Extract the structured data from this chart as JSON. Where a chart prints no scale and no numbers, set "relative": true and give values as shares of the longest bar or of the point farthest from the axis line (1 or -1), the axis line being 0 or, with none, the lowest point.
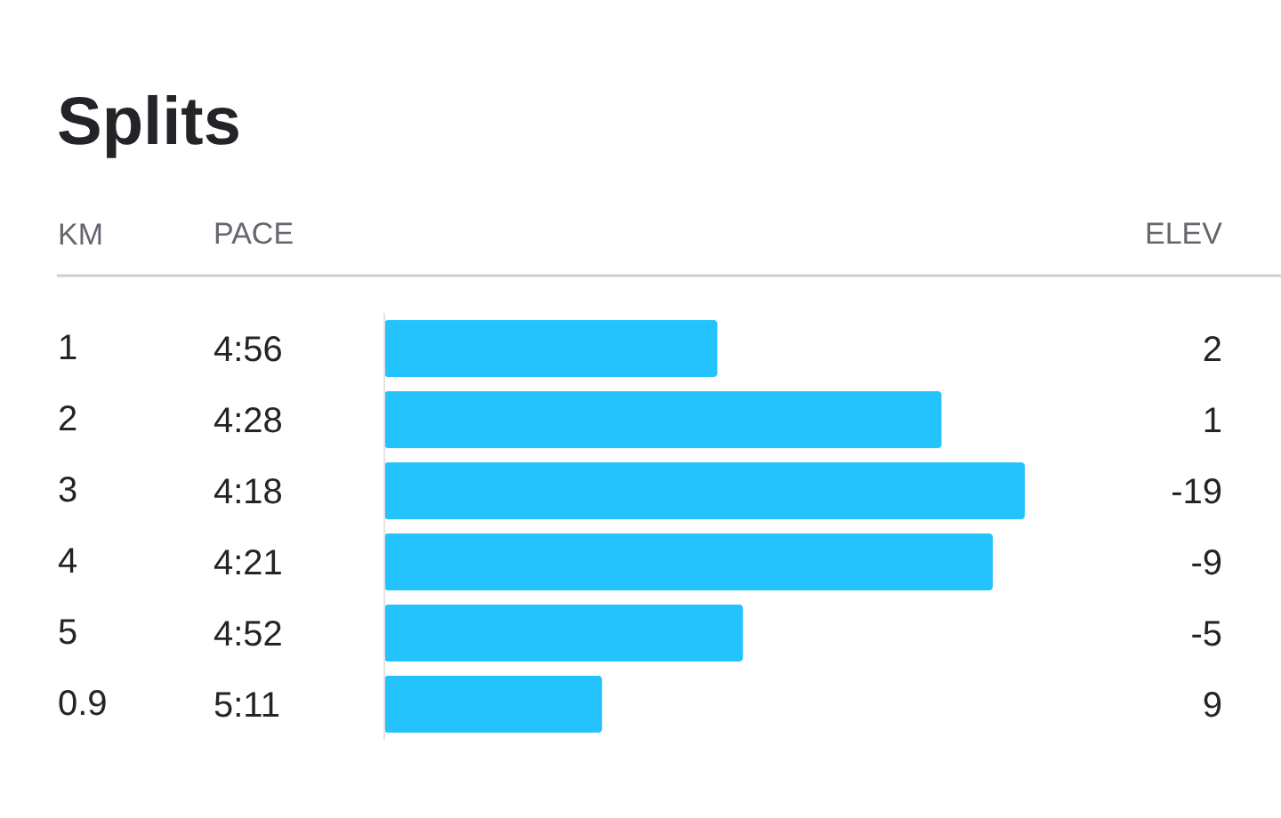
{
  "chart_data": {
    "type": "bar",
    "orientation": "horizontal",
    "relative": true,
    "title": "Splits",
    "ylabel": "KM",
    "xlabel": "PACE",
    "y2label": "ELEV",
    "categories": [
      "1",
      "2",
      "3",
      "4",
      "5",
      "0.9"
    ],
    "values": [
      0.52,
      0.87,
      1,
      0.95,
      0.56,
      0.34
    ],
    "color": "#25c3fe",
    "annotations": [
      "4:56",
      "4:28",
      "4:18",
      "4:21",
      "4:52",
      "5:11",
      "2",
      "1",
      "-19",
      "-9",
      "-5",
      "9"
    ]
  }
}
